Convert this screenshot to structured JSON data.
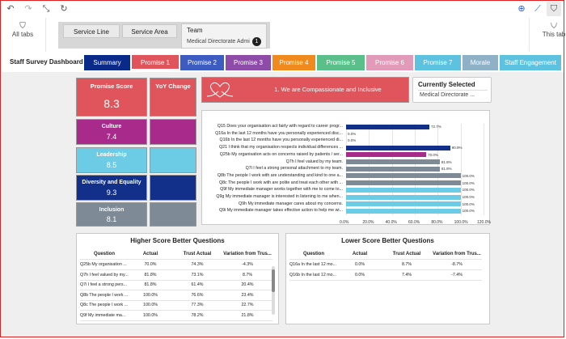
{
  "toolbar": {
    "icons": [
      "undo-icon",
      "redo-icon",
      "collapse-icon",
      "refresh-icon",
      "zoom-icon",
      "chart-icon",
      "filter-icon"
    ]
  },
  "tabs": {
    "all_tabs": "All tabs",
    "this_tab": "This tab",
    "filters": [
      {
        "label": "Service Line"
      },
      {
        "label": "Service Area"
      }
    ],
    "active_filter": {
      "label": "Team",
      "value": "Medical Directorate Admi",
      "count": "1"
    }
  },
  "dashboard": {
    "title": "Staff Survey Dashboard",
    "nav": [
      {
        "label": "Summary",
        "color": "#0a2a8a"
      },
      {
        "label": "Promise 1",
        "color": "#e0555b"
      },
      {
        "label": "Promise 2",
        "color": "#3d5cc1"
      },
      {
        "label": "Promise 3",
        "color": "#8e4ba8"
      },
      {
        "label": "Promise 4",
        "color": "#f08a1c"
      },
      {
        "label": "Promise 5",
        "color": "#5bbf8a"
      },
      {
        "label": "Promise 6",
        "color": "#e29ab9"
      },
      {
        "label": "Promise 7",
        "color": "#5cc2e0"
      },
      {
        "label": "Morale",
        "color": "#8fb1c8"
      },
      {
        "label": "Staff Engagement",
        "color": "#5cc2e0"
      }
    ]
  },
  "cards": {
    "promise_score": {
      "label": "Promise Score",
      "value": "8.3",
      "color": "#e0555b"
    },
    "yoy": {
      "label": "YoY Change",
      "color": "#e0555b"
    },
    "culture": {
      "label": "Culture",
      "value": "7.4",
      "color": "#a82a8a"
    },
    "leadership": {
      "label": "Leadership",
      "value": "8.5",
      "color": "#6ccbe5"
    },
    "diversity": {
      "label": "Diversity and Equality",
      "value": "9.3",
      "color": "#12308a"
    },
    "inclusion": {
      "label": "Inclusion",
      "value": "8.1",
      "color": "#7e8a96"
    }
  },
  "header": {
    "text": "1. We are Compassionate and Inclusive"
  },
  "current_selection": {
    "title": "Currently Selected",
    "value": "Medical Directorate ..."
  },
  "chart_data": {
    "type": "bar",
    "orientation": "horizontal",
    "categories": [
      "Q15 Does your organisation act fairly with regard to career progr...",
      "Q16a In the last 12 months have you personally experienced disc...",
      "Q16b In the last 12 months have you personally experienced di...",
      "Q21 I think that my organisation respects individual differences ...",
      "Q25b My organisation acts on concerns raised by patients / ser...",
      "Q7h I feel valued by my team.",
      "Q7i I feel a strong personal attachment to my team.",
      "Q8b The people I work with are understanding and kind to one a...",
      "Q8c The people I work with are polite and treat each other with ...",
      "Q9f My immediate manager works together with me to come to...",
      "Q9g My immediate manager is interested in listening to me when...",
      "Q9h My immediate manager cares about my concerns.",
      "Q9i My immediate manager takes effective action to help me wi..."
    ],
    "values": [
      72.7,
      0.0,
      0.0,
      90.9,
      70.0,
      81.8,
      81.8,
      100.0,
      100.0,
      100.0,
      100.0,
      100.0,
      100.0
    ],
    "value_labels": [
      "72.7%",
      "0.0%",
      "0.0%",
      "90.9%",
      "70.0%",
      "81.8%",
      "81.8%",
      "100.0%",
      "100.0%",
      "100.0%",
      "100.0%",
      "100.0%",
      "100.0%"
    ],
    "colors": [
      "#12308a",
      "#12308a",
      "#12308a",
      "#12308a",
      "#a82a8a",
      "#7e8a96",
      "#7e8a96",
      "#7e8a96",
      "#7e8a96",
      "#6ccbe5",
      "#6ccbe5",
      "#6ccbe5",
      "#6ccbe5"
    ],
    "xlim": [
      0,
      120
    ],
    "xticks": [
      "0.0%",
      "20.0%",
      "40.0%",
      "60.0%",
      "80.0%",
      "100.0%",
      "120.0%"
    ],
    "grid": true
  },
  "higher_table": {
    "title": "Higher Score Better Questions",
    "columns": [
      "Question",
      "Actual",
      "Trust Actual",
      "Variation from Trus..."
    ],
    "rows": [
      [
        "Q25b My organisation ...",
        "70.0%",
        "74.3%",
        "-4.3%"
      ],
      [
        "Q7h I feel valued by my...",
        "81.8%",
        "73.1%",
        "8.7%"
      ],
      [
        "Q7i I feel a strong pers...",
        "81.8%",
        "61.4%",
        "20.4%"
      ],
      [
        "Q8b The people I work ...",
        "100.0%",
        "76.6%",
        "23.4%"
      ],
      [
        "Q8c The people I work ...",
        "100.0%",
        "77.3%",
        "22.7%"
      ],
      [
        "Q9f My immediate ma...",
        "100.0%",
        "78.2%",
        "21.8%"
      ]
    ]
  },
  "lower_table": {
    "title": "Lower Score Better Questions",
    "columns": [
      "Question",
      "Actual",
      "Trust Actual",
      "Variation from Trus..."
    ],
    "rows": [
      [
        "Q16a In the last 12 mo...",
        "0.0%",
        "8.7%",
        "-8.7%"
      ],
      [
        "Q16b In the last 12 mo...",
        "0.0%",
        "7.4%",
        "-7.4%"
      ]
    ]
  }
}
